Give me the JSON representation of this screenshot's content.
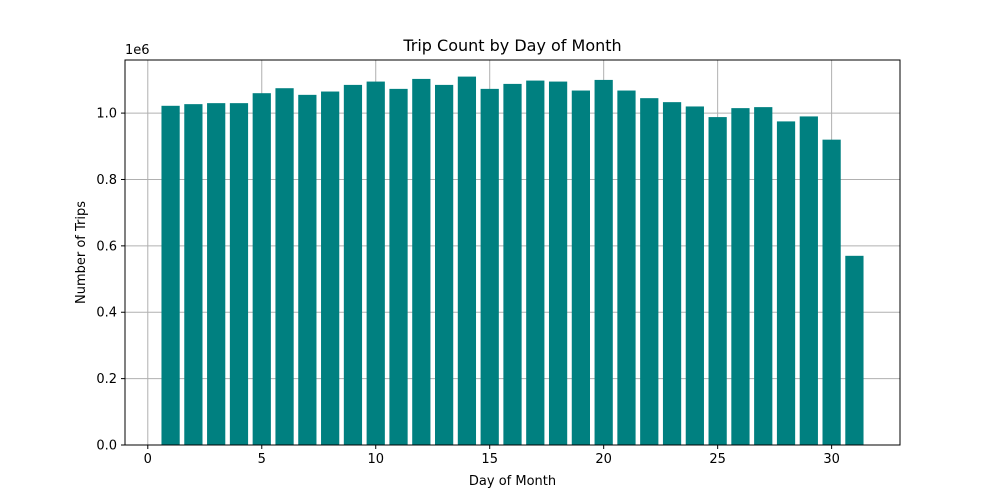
{
  "chart_data": {
    "type": "bar",
    "title": "Trip Count by Day of Month",
    "xlabel": "Day of Month",
    "ylabel": "Number of Trips",
    "y_offset_label": "1e6",
    "bar_color": "#008080",
    "grid": true,
    "xlim": [
      -1,
      33
    ],
    "ylim": [
      0,
      1160000
    ],
    "x_ticks": [
      0,
      5,
      10,
      15,
      20,
      25,
      30
    ],
    "x_tick_labels": [
      "0",
      "5",
      "10",
      "15",
      "20",
      "25",
      "30"
    ],
    "y_ticks": [
      0,
      200000,
      400000,
      600000,
      800000,
      1000000
    ],
    "y_tick_labels": [
      "0.0",
      "0.2",
      "0.4",
      "0.6",
      "0.8",
      "1.0"
    ],
    "x": [
      1,
      2,
      3,
      4,
      5,
      6,
      7,
      8,
      9,
      10,
      11,
      12,
      13,
      14,
      15,
      16,
      17,
      18,
      19,
      20,
      21,
      22,
      23,
      24,
      25,
      26,
      27,
      28,
      29,
      30,
      31
    ],
    "values": [
      1022000,
      1027000,
      1030000,
      1030000,
      1060000,
      1075000,
      1055000,
      1065000,
      1085000,
      1095000,
      1073000,
      1103000,
      1085000,
      1110000,
      1073000,
      1088000,
      1098000,
      1095000,
      1068000,
      1100000,
      1068000,
      1045000,
      1033000,
      1020000,
      988000,
      1015000,
      1018000,
      975000,
      990000,
      920000,
      570000
    ]
  }
}
